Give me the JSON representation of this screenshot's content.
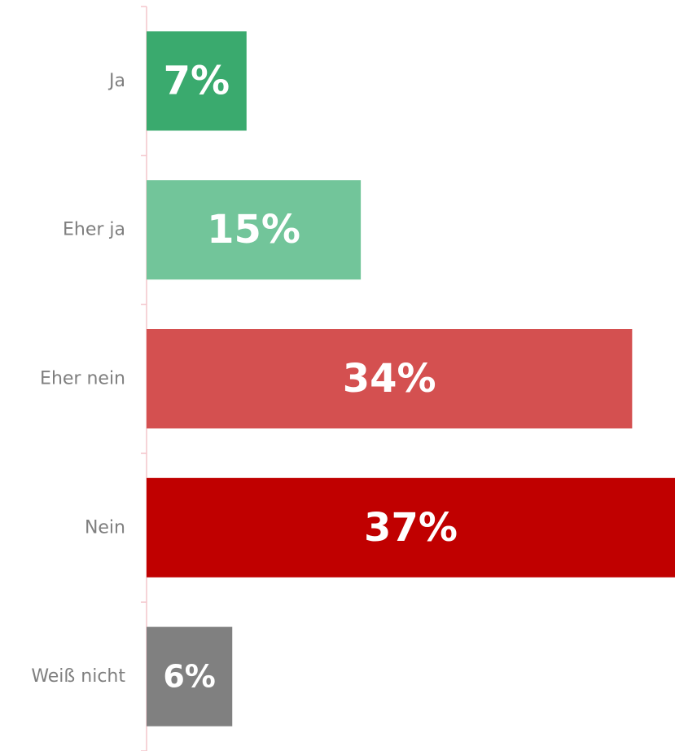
{
  "chart_data": {
    "type": "bar",
    "orientation": "horizontal",
    "title": "",
    "categories": [
      "Ja",
      "Eher ja",
      "Eher nein",
      "Nein",
      "Weiß nicht"
    ],
    "values": [
      7,
      15,
      34,
      37,
      6
    ],
    "value_labels": [
      "7%",
      "15%",
      "34%",
      "37%",
      "6%"
    ],
    "colors": [
      "#3aaa6e",
      "#72c59a",
      "#d45050",
      "#c00000",
      "#808080"
    ],
    "xlim": [
      0,
      37
    ],
    "grid": false,
    "legend": "none",
    "axis_color": "#f4c6cc",
    "label_color": "#7f7f7f"
  }
}
